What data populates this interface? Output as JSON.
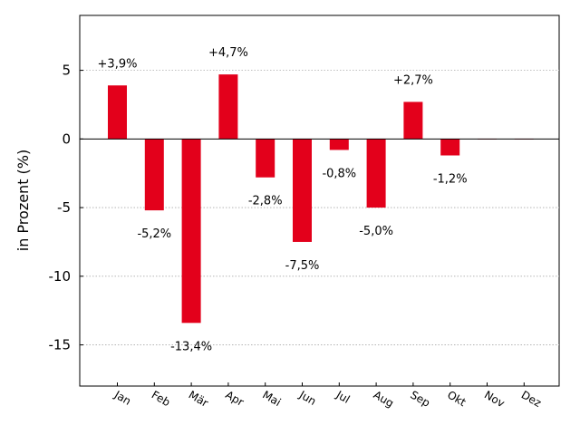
{
  "chart_data": {
    "type": "bar",
    "categories": [
      "Jan",
      "Feb",
      "Mär",
      "Apr",
      "Mai",
      "Jun",
      "Jul",
      "Aug",
      "Sep",
      "Okt",
      "Nov",
      "Dez"
    ],
    "values": [
      3.9,
      -5.2,
      -13.4,
      4.7,
      -2.8,
      -7.5,
      -0.8,
      -5.0,
      2.7,
      -1.2,
      0,
      0
    ],
    "data_labels": [
      "+3,9%",
      "-5,2%",
      "-13,4%",
      "+4,7%",
      "-2,8%",
      "-7,5%",
      "-0,8%",
      "-5,0%",
      "+2,7%",
      "-1,2%",
      "",
      ""
    ],
    "title": "",
    "xlabel": "",
    "ylabel": "in Prozent (%)",
    "ylim": [
      -18,
      9
    ],
    "yticks": [
      5,
      0,
      -5,
      -10,
      -15
    ],
    "ytick_labels": [
      "5",
      "0",
      "-5",
      "-10",
      "-15"
    ],
    "grid": "horizontal-dotted",
    "bar_color": "#e3001b"
  }
}
